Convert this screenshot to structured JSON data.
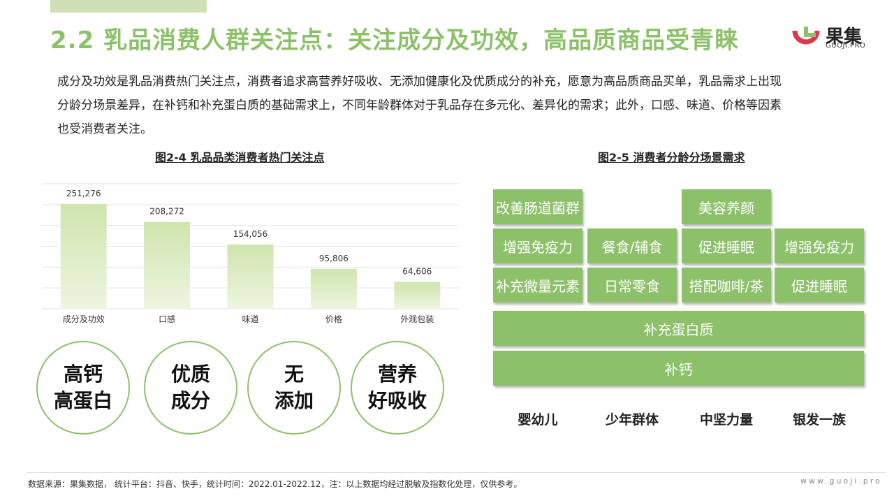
{
  "header": {
    "title": "2.2 乳品消费人群关注点：关注成分及功效，高品质商品受青睐",
    "logo_text": "果集",
    "logo_sub": "GUOJI.PRO"
  },
  "intro": {
    "lines": [
      "成分及功效是乳品消费热门关注点，消费者追求高营养好吸收、无添加健康化及优质成分的补充，愿意为高品质商品买单，乳品需求上出现",
      "分龄分场景差异，在补钙和补充蛋白质的基础需求上，不同年龄群体对于乳品存在多元化、差异化的需求；此外，口感、味道、价格等因素",
      "也受消费者关注。"
    ]
  },
  "figure1": {
    "title": "图2-4 乳品品类消费者热门关注点"
  },
  "figure2": {
    "title": "图2-5 消费者分龄分场景需求"
  },
  "chart_data": {
    "type": "bar",
    "title": "图2-4 乳品品类消费者热门关注点",
    "categories": [
      "成分及功效",
      "口感",
      "味道",
      "价格",
      "外观包装"
    ],
    "values": [
      251276,
      208272,
      154056,
      95806,
      64606
    ],
    "value_labels": [
      "251,276",
      "208,272",
      "154,056",
      "95,806",
      "64,606"
    ],
    "ylim": [
      0,
      300000
    ],
    "grid": true,
    "bar_color_top": "#cfe5ad",
    "bar_color_bottom": "#eef5e1"
  },
  "circles": [
    {
      "line1": "高钙",
      "line2": "高蛋白"
    },
    {
      "line1": "优质",
      "line2": "成分"
    },
    {
      "line1": "无",
      "line2": "添加"
    },
    {
      "line1": "营养",
      "line2": "好吸收"
    }
  ],
  "needs": {
    "groups": [
      "婴幼儿",
      "少年群体",
      "中坚力量",
      "银发一族"
    ],
    "columns": [
      [
        "补充微量元素",
        "增强免疫力",
        "改善肠道菌群"
      ],
      [
        "日常零食",
        "餐食/辅食"
      ],
      [
        "搭配咖啡/茶",
        "促进睡眠",
        "美容养颜"
      ],
      [
        "促进睡眠",
        "增强免疫力"
      ]
    ],
    "base": [
      "补充蛋白质",
      "补钙"
    ]
  },
  "footer": {
    "source": "数据来源：果集数据， 统计平台：抖音、快手，统计时间：2022.01-2022.12，注：以上数据均经过脱敏及指数化处理，仅供参考。",
    "url": "www.guoji.pro"
  },
  "colors": {
    "accent": "#8cc16a",
    "logo_red": "#e0364a"
  }
}
